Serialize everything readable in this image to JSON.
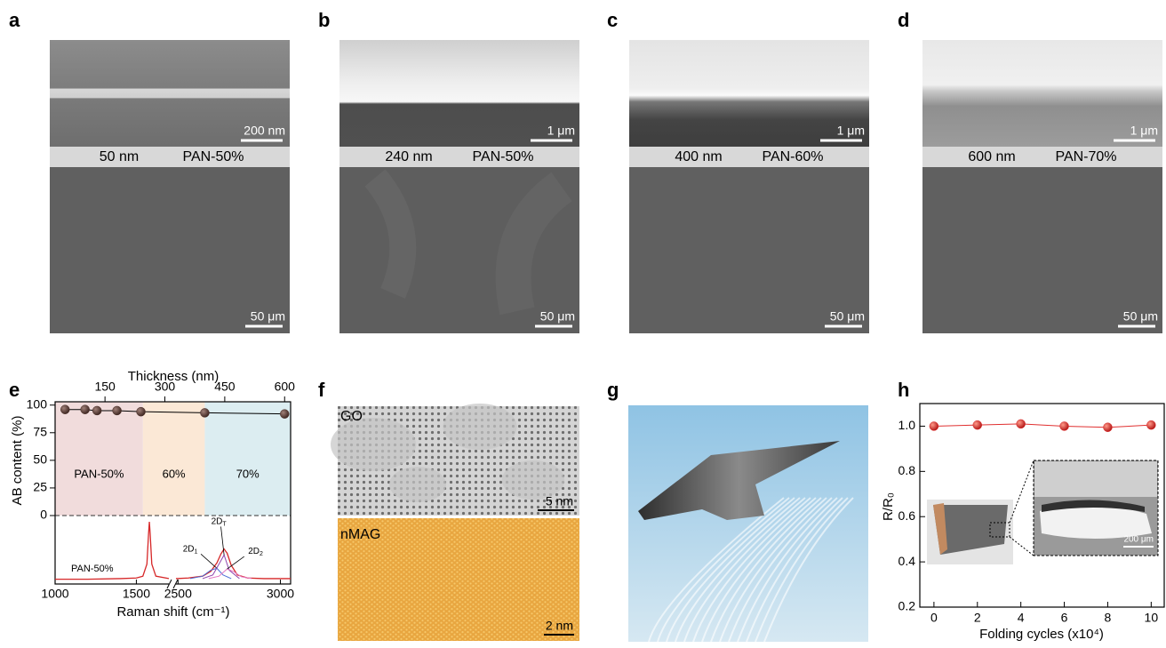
{
  "panel_labels": [
    "a",
    "b",
    "c",
    "d",
    "e",
    "f",
    "g",
    "h"
  ],
  "sem": [
    {
      "top_scale": "200 nm",
      "thickness": "50 nm",
      "sample": "PAN-50%",
      "bottom_scale": "50 μm"
    },
    {
      "top_scale": "1 μm",
      "thickness": "240 nm",
      "sample": "PAN-50%",
      "bottom_scale": "50 μm"
    },
    {
      "top_scale": "1 μm",
      "thickness": "400 nm",
      "sample": "PAN-60%",
      "bottom_scale": "50 μm"
    },
    {
      "top_scale": "1 μm",
      "thickness": "600 nm",
      "sample": "PAN-70%",
      "bottom_scale": "50 μm"
    }
  ],
  "tem": {
    "top_label": "GO",
    "top_scale": "5 nm",
    "bottom_label": "nMAG",
    "bottom_scale": "2 nm"
  },
  "chart_data": [
    {
      "type": "line",
      "xlabel": "Thickness (nm)",
      "ylabel": "AB content (%)",
      "x": [
        50,
        100,
        130,
        180,
        240,
        400,
        600
      ],
      "values": [
        96,
        96,
        95,
        95,
        94,
        93,
        92
      ],
      "color": "#4a302a",
      "xlim": [
        25,
        615
      ],
      "xticks": [
        150,
        300,
        450,
        600
      ],
      "ylim": [
        0,
        103
      ],
      "yticks": [
        0,
        25,
        50,
        75,
        100
      ],
      "zero_line": true,
      "regions": [
        {
          "label": "PAN-50%",
          "range": [
            25,
            245
          ],
          "color": "#f1dcdc"
        },
        {
          "label": "60%",
          "range": [
            245,
            400
          ],
          "color": "#fbe8d6"
        },
        {
          "label": "70%",
          "range": [
            400,
            615
          ],
          "color": "#dcedf1"
        }
      ]
    },
    {
      "type": "line",
      "xlabel": "Raman shift (cm⁻¹)",
      "label": "PAN-50%",
      "xlim": [
        1000,
        1700
      ],
      "x2lim": [
        2490,
        3050
      ],
      "xticks": [
        1000,
        1500
      ],
      "x2ticks": [
        2500,
        3000
      ],
      "ylim": [
        0,
        1
      ],
      "series": [
        {
          "color": "#d62728",
          "x": [
            1000,
            1200,
            1400,
            1500,
            1540,
            1565,
            1575,
            1580,
            1585,
            1595,
            1620,
            1700,
            2490,
            2550,
            2620,
            2660,
            2690,
            2710,
            2725,
            2740,
            2760,
            2790,
            2840,
            2920,
            3050
          ],
          "values": [
            0.05,
            0.05,
            0.06,
            0.07,
            0.1,
            0.3,
            0.8,
            1.0,
            0.8,
            0.3,
            0.1,
            0.06,
            0.06,
            0.07,
            0.1,
            0.18,
            0.32,
            0.47,
            0.55,
            0.48,
            0.28,
            0.12,
            0.07,
            0.06,
            0.06
          ]
        },
        {
          "color": "#4a6fd6",
          "label": {
            "main": "2D",
            "sub": "1"
          },
          "x": [
            2560,
            2620,
            2660,
            2690,
            2720,
            2760
          ],
          "values": [
            0.06,
            0.1,
            0.2,
            0.23,
            0.12,
            0.06
          ]
        },
        {
          "color": "#8e44ad",
          "label": {
            "main": "2D",
            "sub": "T"
          },
          "x": [
            2620,
            2670,
            2700,
            2725,
            2750,
            2800
          ],
          "values": [
            0.06,
            0.12,
            0.3,
            0.45,
            0.2,
            0.06
          ]
        },
        {
          "color": "#e377c2",
          "label": {
            "main": "2D",
            "sub": "2"
          },
          "x": [
            2650,
            2700,
            2740,
            2770,
            2810,
            2860
          ],
          "values": [
            0.06,
            0.1,
            0.22,
            0.18,
            0.09,
            0.06
          ]
        }
      ]
    },
    {
      "type": "line",
      "xlabel": "Folding cycles (x10⁴)",
      "ylabel": "R/R₀",
      "x": [
        0,
        2,
        4,
        6,
        8,
        10
      ],
      "values": [
        1.0,
        1.005,
        1.01,
        1.0,
        0.995,
        1.005
      ],
      "color": "#e03030",
      "xlim": [
        -0.65,
        10.6
      ],
      "xticks": [
        0,
        2,
        4,
        6,
        8,
        10
      ],
      "ylim": [
        0.2,
        1.1
      ],
      "yticks": [
        0.2,
        0.4,
        0.6,
        0.8,
        {
          "value": 1,
          "label": "1.0"
        }
      ],
      "inset_scale": "200 μm"
    }
  ]
}
